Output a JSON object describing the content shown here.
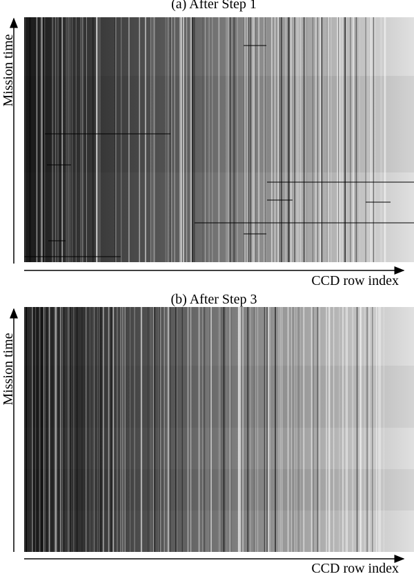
{
  "panels": [
    {
      "title": "(a) After Step 1",
      "y_label": "Mission time",
      "x_label": "CCD row index"
    },
    {
      "title": "(b) After Step 3",
      "y_label": "Mission time",
      "x_label": "CCD row index"
    }
  ]
}
